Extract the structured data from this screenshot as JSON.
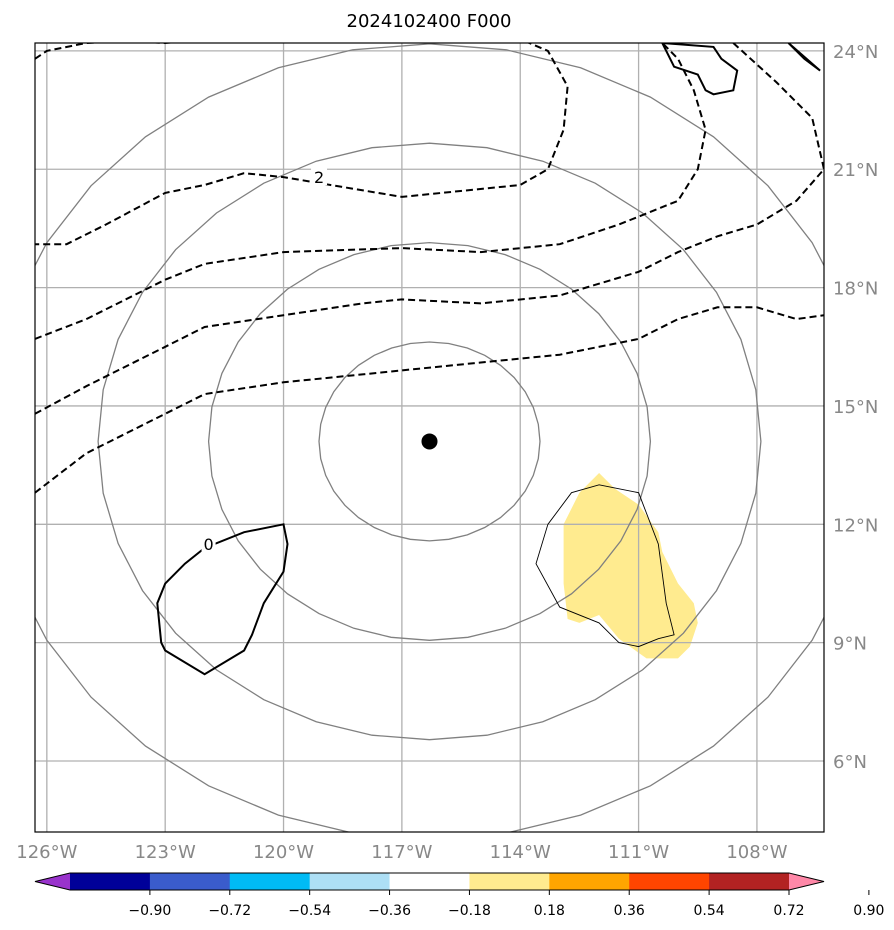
{
  "chart_data": {
    "type": "contour_map",
    "title": "2024102400 F000",
    "x_axis": {
      "range": [
        -126.3,
        -106.3
      ],
      "ticks": [
        -126,
        -123,
        -120,
        -117,
        -114,
        -111,
        -108
      ],
      "tick_labels": [
        "126°W",
        "123°W",
        "120°W",
        "117°W",
        "114°W",
        "111°W",
        "108°W"
      ]
    },
    "y_axis": {
      "range": [
        4.2,
        24.2
      ],
      "ticks": [
        6,
        9,
        12,
        15,
        18,
        21,
        24
      ],
      "tick_labels": [
        "6°N",
        "9°N",
        "12°N",
        "15°N",
        "18°N",
        "21°N",
        "24°N"
      ],
      "label_side": "right"
    },
    "grid": true,
    "center_marker": {
      "lon": -116.3,
      "lat": 14.1
    },
    "range_rings_deg": [
      2.8,
      5.6,
      8.4,
      11.2
    ],
    "dashed_contours": [
      {
        "label": "2",
        "points": [
          [
            -126.3,
            23.8
          ],
          [
            -126,
            24
          ],
          [
            -125,
            24.2
          ],
          [
            -124,
            24.25
          ],
          [
            -123,
            24.2
          ],
          [
            -122,
            24.3
          ],
          [
            -120,
            24.6
          ],
          [
            -117,
            24.5
          ],
          [
            -114,
            24.3
          ],
          [
            -113.3,
            24
          ],
          [
            -112.8,
            23.1
          ],
          [
            -112.9,
            22
          ],
          [
            -113.3,
            21
          ],
          [
            -114,
            20.6
          ],
          [
            -117,
            20.3
          ],
          [
            -120,
            20.8
          ],
          [
            -121,
            20.9
          ],
          [
            -122,
            20.6
          ],
          [
            -123,
            20.4
          ],
          [
            -124.5,
            19.6
          ],
          [
            -125.5,
            19.1
          ],
          [
            -126.3,
            19.1
          ]
        ]
      },
      {
        "label": "",
        "points": [
          [
            -126.3,
            16.7
          ],
          [
            -125,
            17.2
          ],
          [
            -123,
            18.2
          ],
          [
            -122,
            18.6
          ],
          [
            -120,
            18.9
          ],
          [
            -117,
            19
          ],
          [
            -115,
            18.9
          ],
          [
            -113,
            19.1
          ],
          [
            -111.5,
            19.6
          ],
          [
            -110,
            20.2
          ],
          [
            -109.5,
            21
          ],
          [
            -109.3,
            22
          ],
          [
            -109.6,
            23
          ],
          [
            -110,
            23.8
          ],
          [
            -110.4,
            24.2
          ]
        ]
      },
      {
        "label": "",
        "points": [
          [
            -126.3,
            14.8
          ],
          [
            -125,
            15.5
          ],
          [
            -123,
            16.5
          ],
          [
            -122,
            17
          ],
          [
            -120,
            17.3
          ],
          [
            -118,
            17.6
          ],
          [
            -117,
            17.7
          ],
          [
            -115,
            17.6
          ],
          [
            -113,
            17.8
          ],
          [
            -111,
            18.4
          ],
          [
            -110,
            18.9
          ],
          [
            -109,
            19.3
          ],
          [
            -108,
            19.6
          ],
          [
            -107,
            20.2
          ],
          [
            -106.3,
            21
          ]
        ]
      },
      {
        "label": "",
        "points": [
          [
            -126.3,
            12.8
          ],
          [
            -125,
            13.8
          ],
          [
            -123,
            14.8
          ],
          [
            -122,
            15.3
          ],
          [
            -120,
            15.6
          ],
          [
            -118,
            15.8
          ],
          [
            -117,
            15.9
          ],
          [
            -115,
            16.1
          ],
          [
            -113,
            16.3
          ],
          [
            -111,
            16.7
          ],
          [
            -110,
            17.2
          ],
          [
            -109,
            17.5
          ],
          [
            -108,
            17.5
          ],
          [
            -107,
            17.2
          ],
          [
            -106.3,
            17.3
          ]
        ]
      },
      {
        "label": "",
        "points": [
          [
            -108.6,
            24.2
          ],
          [
            -107.5,
            23.2
          ],
          [
            -106.6,
            22.3
          ],
          [
            -106.3,
            21
          ]
        ]
      }
    ],
    "solid_contours": [
      {
        "label": "0",
        "points": [
          [
            -120,
            12
          ],
          [
            -121,
            11.8
          ],
          [
            -122,
            11.4
          ],
          [
            -122.5,
            11
          ],
          [
            -123,
            10.5
          ],
          [
            -123.2,
            10
          ],
          [
            -123.1,
            9
          ],
          [
            -123,
            8.8
          ],
          [
            -122,
            8.2
          ],
          [
            -121,
            8.8
          ],
          [
            -120.8,
            9.2
          ],
          [
            -120.5,
            10
          ],
          [
            -120,
            10.8
          ],
          [
            -119.9,
            11.5
          ]
        ]
      },
      {
        "label": "",
        "points": [
          [
            -110.4,
            24.2
          ],
          [
            -110.1,
            23.6
          ],
          [
            -109.5,
            23.4
          ],
          [
            -109.3,
            23
          ],
          [
            -109.1,
            22.9
          ],
          [
            -108.6,
            23
          ],
          [
            -108.5,
            23.5
          ],
          [
            -108.9,
            23.8
          ],
          [
            -109.1,
            24.1
          ]
        ]
      },
      {
        "label": "",
        "points": [
          [
            -107.2,
            24.2
          ],
          [
            -106.8,
            23.8
          ],
          [
            -106.4,
            23.5
          ]
        ]
      }
    ],
    "outline_polygon": [
      [
        -113.3,
        12
      ],
      [
        -112.7,
        12.8
      ],
      [
        -112,
        13
      ],
      [
        -111,
        12.8
      ],
      [
        -110.5,
        11.5
      ],
      [
        -110.3,
        10
      ],
      [
        -110.1,
        9.2
      ],
      [
        -110.5,
        9.1
      ],
      [
        -111,
        8.9
      ],
      [
        -111.5,
        9
      ],
      [
        -112,
        9.5
      ],
      [
        -113,
        9.9
      ],
      [
        -113.6,
        11
      ]
    ],
    "shaded_region": {
      "value": 0.27,
      "color": "#ffeb8f",
      "points": [
        [
          -112.9,
          12
        ],
        [
          -112.5,
          12.8
        ],
        [
          -112,
          13.3
        ],
        [
          -111.6,
          12.9
        ],
        [
          -111,
          12.5
        ],
        [
          -110.5,
          11.8
        ],
        [
          -110.4,
          11.3
        ],
        [
          -110,
          10.5
        ],
        [
          -109.6,
          10
        ],
        [
          -109.5,
          9.5
        ],
        [
          -109.7,
          8.9
        ],
        [
          -110,
          8.6
        ],
        [
          -110.8,
          8.6
        ],
        [
          -111.5,
          9.1
        ],
        [
          -112,
          9.7
        ],
        [
          -112.5,
          9.5
        ],
        [
          -112.8,
          9.6
        ],
        [
          -112.9,
          10.5
        ]
      ]
    },
    "colorbar": {
      "levels": [
        "−0.90",
        "−0.72",
        "−0.54",
        "−0.36",
        "−0.18",
        "0.18",
        "0.36",
        "0.54",
        "0.72",
        "0.90"
      ],
      "colors": [
        "#9933cc",
        "#000099",
        "#3a5ccc",
        "#00bbf5",
        "#addff5",
        "#ffffff",
        "#ffeb8f",
        "#ffa500",
        "#ff4500",
        "#b22222",
        "#ff88a8"
      ]
    }
  }
}
